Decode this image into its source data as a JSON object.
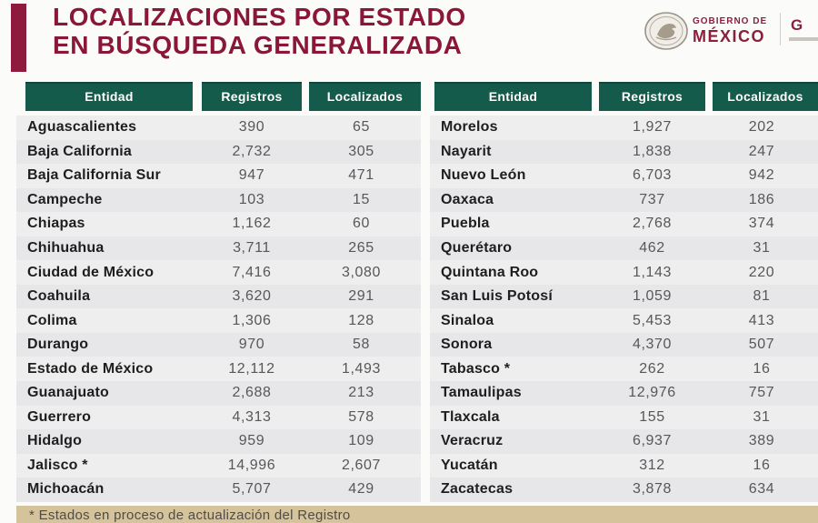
{
  "header": {
    "title_line1": "LOCALIZACIONES POR ESTADO",
    "title_line2": "EN BÚSQUEDA GENERALIZADA",
    "logo": {
      "line1": "GOBIERNO DE",
      "line2": "MÉXICO",
      "emblem": "eagle-seal-icon",
      "partial_logo_fragment": "G"
    }
  },
  "colors": {
    "accent_maroon": "#8e1a3d",
    "header_green": "#155b4b",
    "body_gray": "#eaeaeb",
    "footnote_beige": "#d4c39b"
  },
  "tables": {
    "columns": [
      "Entidad",
      "Registros",
      "Localizados"
    ],
    "left": {
      "rows": [
        [
          "Aguascalientes",
          "390",
          "65"
        ],
        [
          "Baja California",
          "2,732",
          "305"
        ],
        [
          "Baja California Sur",
          "947",
          "471"
        ],
        [
          "Campeche",
          "103",
          "15"
        ],
        [
          "Chiapas",
          "1,162",
          "60"
        ],
        [
          "Chihuahua",
          "3,711",
          "265"
        ],
        [
          "Ciudad de México",
          "7,416",
          "3,080"
        ],
        [
          "Coahuila",
          "3,620",
          "291"
        ],
        [
          "Colima",
          "1,306",
          "128"
        ],
        [
          "Durango",
          "970",
          "58"
        ],
        [
          "Estado de México",
          "12,112",
          "1,493"
        ],
        [
          "Guanajuato",
          "2,688",
          "213"
        ],
        [
          "Guerrero",
          "4,313",
          "578"
        ],
        [
          "Hidalgo",
          "959",
          "109"
        ],
        [
          "Jalisco *",
          "14,996",
          "2,607"
        ],
        [
          "Michoacán",
          "5,707",
          "429"
        ]
      ]
    },
    "right": {
      "rows": [
        [
          "Morelos",
          "1,927",
          "202"
        ],
        [
          "Nayarit",
          "1,838",
          "247"
        ],
        [
          "Nuevo León",
          "6,703",
          "942"
        ],
        [
          "Oaxaca",
          "737",
          "186"
        ],
        [
          "Puebla",
          "2,768",
          "374"
        ],
        [
          "Querétaro",
          "462",
          "31"
        ],
        [
          "Quintana Roo",
          "1,143",
          "220"
        ],
        [
          "San Luis Potosí",
          "1,059",
          "81"
        ],
        [
          "Sinaloa",
          "5,453",
          "413"
        ],
        [
          "Sonora",
          "4,370",
          "507"
        ],
        [
          "Tabasco *",
          "262",
          "16"
        ],
        [
          "Tamaulipas",
          "12,976",
          "757"
        ],
        [
          "Tlaxcala",
          "155",
          "31"
        ],
        [
          "Veracruz",
          "6,937",
          "389"
        ],
        [
          "Yucatán",
          "312",
          "16"
        ],
        [
          "Zacatecas",
          "3,878",
          "634"
        ]
      ]
    }
  },
  "footnote": "* Estados en proceso de actualización del Registro"
}
